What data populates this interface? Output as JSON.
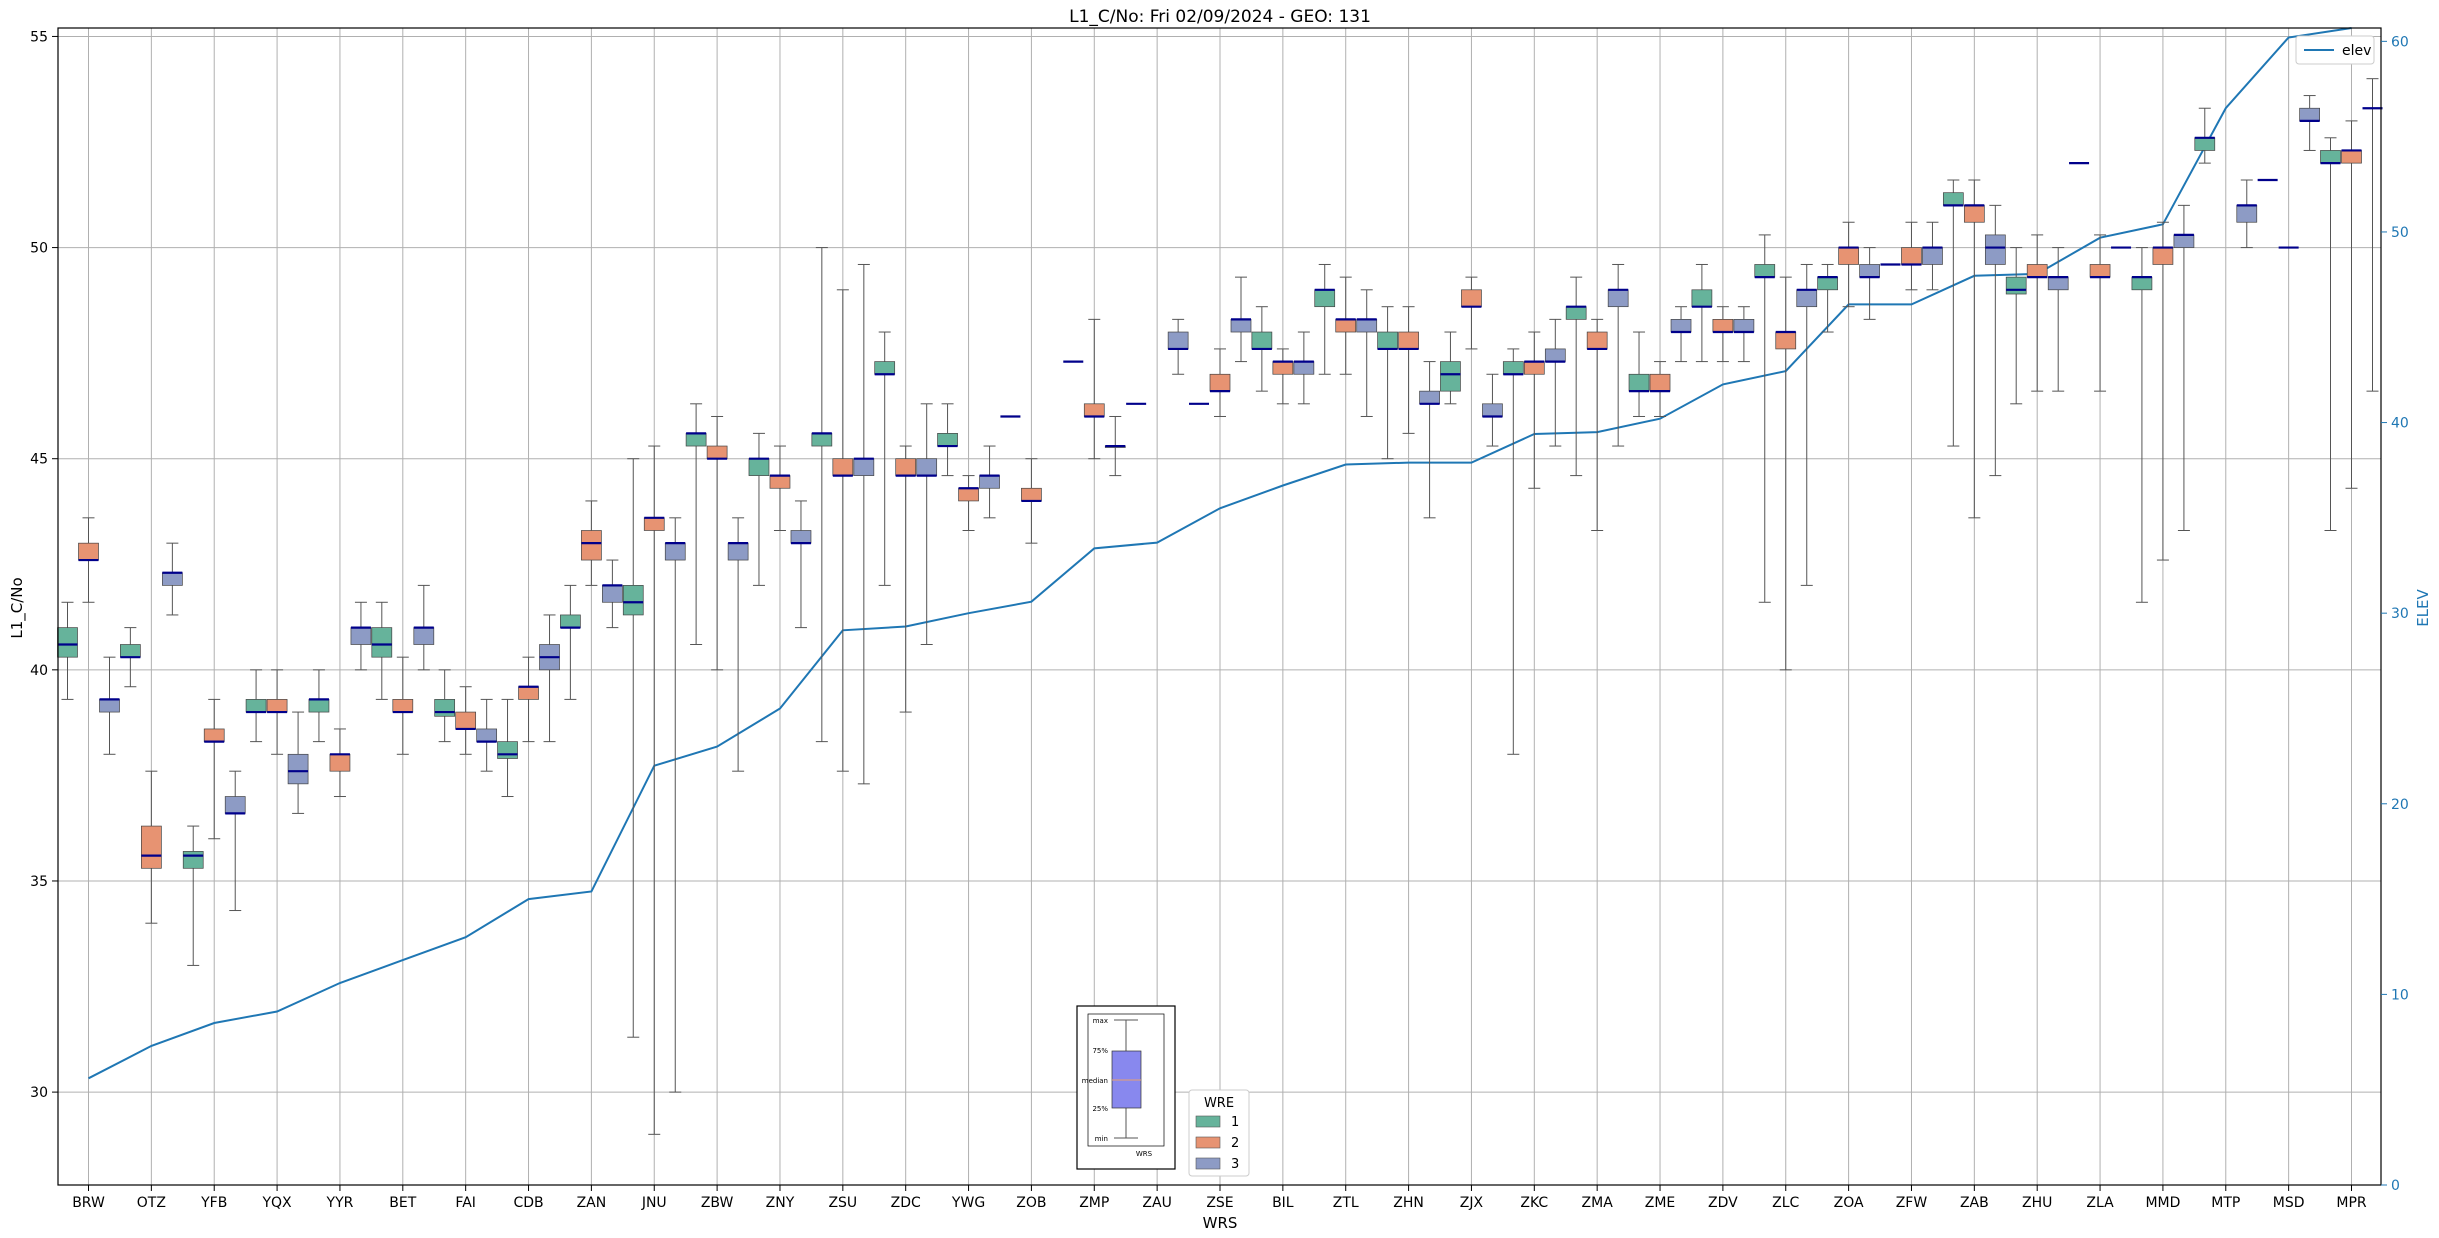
{
  "chart_data": {
    "type": "box",
    "title": "L1_C/No: Fri 02/09/2024 - GEO: 131",
    "xlabel": "WRS",
    "ylabel": "L1_C/No",
    "y2label": "ELEV",
    "ylim": [
      27.8,
      55.2
    ],
    "y2lim": [
      0,
      60.7
    ],
    "yticks": [
      30,
      35,
      40,
      45,
      50,
      55
    ],
    "y2ticks": [
      0,
      10,
      20,
      30,
      40,
      50,
      60
    ],
    "grid": true,
    "colors": {
      "1": "#66b39b",
      "2": "#e79372",
      "3": "#8d9bc5",
      "median": "#00008b",
      "elev": "#1f77b4",
      "whisker": "#555555"
    },
    "categories": [
      "BRW",
      "OTZ",
      "YFB",
      "YQX",
      "YYR",
      "BET",
      "FAI",
      "CDB",
      "ZAN",
      "JNU",
      "ZBW",
      "ZNY",
      "ZSU",
      "ZDC",
      "YWG",
      "ZOB",
      "ZMP",
      "ZAU",
      "ZSE",
      "BIL",
      "ZTL",
      "ZHN",
      "ZJX",
      "ZKC",
      "ZMA",
      "ZME",
      "ZDV",
      "ZLC",
      "ZOA",
      "ZFW",
      "ZAB",
      "ZHU",
      "ZLA",
      "MMD",
      "MTP",
      "MSD",
      "MPR"
    ],
    "legend": {
      "title": "WRE",
      "entries": [
        "1",
        "2",
        "3"
      ],
      "location": "bottom-center"
    },
    "elev_legend": {
      "label": "elev",
      "location": "top-right"
    },
    "series": [
      {
        "name": "1",
        "boxes": [
          [
            0,
            39.3,
            40.3,
            40.6,
            41.0,
            41.6
          ],
          [
            1,
            39.6,
            40.3,
            40.3,
            40.6,
            41.0
          ],
          [
            2,
            33.0,
            35.3,
            35.6,
            35.7,
            36.3
          ],
          [
            3,
            38.3,
            39.0,
            39.0,
            39.3,
            40.0
          ],
          [
            4,
            38.3,
            39.0,
            39.3,
            39.3,
            40.0
          ],
          [
            5,
            39.3,
            40.3,
            40.6,
            41.0,
            41.6
          ],
          [
            6,
            38.3,
            38.9,
            39.0,
            39.3,
            40.0
          ],
          [
            7,
            37.0,
            37.9,
            38.0,
            38.3,
            39.3
          ],
          [
            8,
            39.3,
            41.0,
            41.0,
            41.3,
            42.0
          ],
          [
            9,
            31.3,
            41.3,
            41.6,
            42.0,
            45.0
          ],
          [
            10,
            40.6,
            45.3,
            45.6,
            45.6,
            46.3
          ],
          [
            11,
            42.0,
            44.6,
            45.0,
            45.0,
            45.6
          ],
          [
            12,
            38.3,
            45.3,
            45.6,
            45.6,
            50.0
          ],
          [
            13,
            42.0,
            47.0,
            47.0,
            47.3,
            48.0
          ],
          [
            14,
            44.6,
            45.3,
            45.3,
            45.6,
            46.3
          ],
          [
            15,
            null,
            null,
            46.0,
            null,
            null
          ],
          [
            16,
            null,
            null,
            47.3,
            null,
            null
          ],
          [
            17,
            null,
            null,
            46.3,
            null,
            null
          ],
          [
            18,
            null,
            null,
            46.3,
            null,
            null
          ],
          [
            19,
            46.6,
            47.6,
            47.6,
            48.0,
            48.6
          ],
          [
            20,
            47.0,
            48.6,
            49.0,
            49.0,
            49.6
          ],
          [
            21,
            45.0,
            47.6,
            47.6,
            48.0,
            48.6
          ],
          [
            22,
            46.3,
            46.6,
            47.0,
            47.3,
            48.0
          ],
          [
            23,
            38.0,
            47.0,
            47.0,
            47.3,
            47.6
          ],
          [
            24,
            44.6,
            48.3,
            48.6,
            48.6,
            49.3
          ],
          [
            25,
            46.0,
            46.6,
            46.6,
            47.0,
            48.0
          ],
          [
            26,
            47.3,
            48.6,
            48.6,
            49.0,
            49.6
          ],
          [
            27,
            41.6,
            49.3,
            49.3,
            49.6,
            50.3
          ],
          [
            28,
            48.0,
            49.0,
            49.3,
            49.3,
            49.6
          ],
          [
            29,
            null,
            null,
            49.6,
            null,
            null
          ],
          [
            30,
            45.3,
            51.0,
            51.0,
            51.3,
            51.6
          ],
          [
            31,
            46.3,
            48.9,
            49.0,
            49.3,
            50.0
          ],
          [
            32,
            null,
            null,
            52.0,
            null,
            null
          ],
          [
            33,
            41.6,
            49.0,
            49.3,
            49.3,
            50.0
          ],
          [
            34,
            52.0,
            52.3,
            52.6,
            52.6,
            53.3
          ],
          [
            35,
            null,
            null,
            51.6,
            null,
            null
          ],
          [
            36,
            43.3,
            52.0,
            52.0,
            52.3,
            52.6
          ]
        ]
      },
      {
        "name": "2",
        "boxes": [
          [
            0,
            41.6,
            42.6,
            42.6,
            43.0,
            43.6
          ],
          [
            1,
            34.0,
            35.3,
            35.6,
            36.3,
            37.6
          ],
          [
            2,
            36.0,
            38.3,
            38.3,
            38.6,
            39.3
          ],
          [
            3,
            38.0,
            39.0,
            39.0,
            39.3,
            40.0
          ],
          [
            4,
            37.0,
            37.6,
            38.0,
            38.0,
            38.6
          ],
          [
            5,
            38.0,
            39.0,
            39.0,
            39.3,
            40.3
          ],
          [
            6,
            38.0,
            38.6,
            38.6,
            39.0,
            39.6
          ],
          [
            7,
            38.3,
            39.3,
            39.6,
            39.6,
            40.3
          ],
          [
            8,
            42.0,
            42.6,
            43.0,
            43.3,
            44.0
          ],
          [
            9,
            29.0,
            43.3,
            43.6,
            43.6,
            45.3
          ],
          [
            10,
            40.0,
            45.0,
            45.0,
            45.3,
            46.0
          ],
          [
            11,
            43.3,
            44.3,
            44.6,
            44.6,
            45.3
          ],
          [
            12,
            37.6,
            44.6,
            44.6,
            45.0,
            49.0
          ],
          [
            13,
            39.0,
            44.6,
            44.6,
            45.0,
            45.3
          ],
          [
            14,
            43.3,
            44.0,
            44.3,
            44.3,
            44.6
          ],
          [
            15,
            43.0,
            44.0,
            44.0,
            44.3,
            45.0
          ],
          [
            16,
            45.0,
            46.0,
            46.0,
            46.3,
            48.3
          ],
          [
            17,
            null,
            null,
            null,
            null,
            null
          ],
          [
            18,
            46.0,
            46.6,
            46.6,
            47.0,
            47.6
          ],
          [
            19,
            46.3,
            47.0,
            47.3,
            47.3,
            47.6
          ],
          [
            20,
            47.0,
            48.0,
            48.3,
            48.3,
            49.3
          ],
          [
            21,
            45.6,
            47.6,
            47.6,
            48.0,
            48.6
          ],
          [
            22,
            47.6,
            48.6,
            48.6,
            49.0,
            49.3
          ],
          [
            23,
            44.3,
            47.0,
            47.3,
            47.3,
            48.0
          ],
          [
            24,
            43.3,
            47.6,
            47.6,
            48.0,
            48.3
          ],
          [
            25,
            46.0,
            46.6,
            46.6,
            47.0,
            47.3
          ],
          [
            26,
            47.3,
            48.0,
            48.0,
            48.3,
            48.6
          ],
          [
            27,
            40.0,
            47.6,
            48.0,
            48.0,
            49.3
          ],
          [
            28,
            48.6,
            49.6,
            50.0,
            50.0,
            50.6
          ],
          [
            29,
            49.0,
            49.6,
            49.6,
            50.0,
            50.6
          ],
          [
            30,
            43.6,
            50.6,
            51.0,
            51.0,
            51.6
          ],
          [
            31,
            46.6,
            49.3,
            49.3,
            49.6,
            50.3
          ],
          [
            32,
            46.6,
            49.3,
            49.3,
            49.6,
            50.3
          ],
          [
            33,
            42.6,
            49.6,
            50.0,
            50.0,
            50.6
          ],
          [
            34,
            null,
            null,
            null,
            null,
            null
          ],
          [
            35,
            null,
            null,
            50.0,
            null,
            null
          ],
          [
            36,
            44.3,
            52.0,
            52.3,
            52.3,
            53.0
          ]
        ]
      },
      {
        "name": "3",
        "boxes": [
          [
            0,
            38.0,
            39.0,
            39.3,
            39.3,
            40.3
          ],
          [
            1,
            41.3,
            42.0,
            42.3,
            42.3,
            43.0
          ],
          [
            2,
            34.3,
            36.6,
            36.6,
            37.0,
            37.6
          ],
          [
            3,
            36.6,
            37.3,
            37.6,
            38.0,
            39.0
          ],
          [
            4,
            40.0,
            40.6,
            41.0,
            41.0,
            41.6
          ],
          [
            5,
            40.0,
            40.6,
            41.0,
            41.0,
            42.0
          ],
          [
            6,
            37.6,
            38.3,
            38.3,
            38.6,
            39.3
          ],
          [
            7,
            38.3,
            40.0,
            40.3,
            40.6,
            41.3
          ],
          [
            8,
            41.0,
            41.6,
            42.0,
            42.0,
            42.6
          ],
          [
            9,
            30.0,
            42.6,
            43.0,
            43.0,
            43.6
          ],
          [
            10,
            37.6,
            42.6,
            43.0,
            43.0,
            43.6
          ],
          [
            11,
            41.0,
            43.0,
            43.0,
            43.3,
            44.0
          ],
          [
            12,
            37.3,
            44.6,
            45.0,
            45.0,
            49.6
          ],
          [
            13,
            40.6,
            44.6,
            44.6,
            45.0,
            46.3
          ],
          [
            14,
            43.6,
            44.3,
            44.6,
            44.6,
            45.3
          ],
          [
            15,
            null,
            null,
            null,
            null,
            null
          ],
          [
            16,
            44.6,
            45.3,
            45.3,
            45.3,
            46.0
          ],
          [
            17,
            47.0,
            47.6,
            47.6,
            48.0,
            48.3
          ],
          [
            18,
            47.3,
            48.0,
            48.3,
            48.3,
            49.3
          ],
          [
            19,
            46.3,
            47.0,
            47.3,
            47.3,
            48.0
          ],
          [
            20,
            46.0,
            48.0,
            48.3,
            48.3,
            49.0
          ],
          [
            21,
            43.6,
            46.3,
            46.3,
            46.6,
            47.3
          ],
          [
            22,
            45.3,
            46.0,
            46.0,
            46.3,
            47.0
          ],
          [
            23,
            45.3,
            47.3,
            47.3,
            47.6,
            48.3
          ],
          [
            24,
            45.3,
            48.6,
            49.0,
            49.0,
            49.6
          ],
          [
            25,
            47.3,
            48.0,
            48.0,
            48.3,
            48.6
          ],
          [
            26,
            47.3,
            48.0,
            48.0,
            48.3,
            48.6
          ],
          [
            27,
            42.0,
            48.6,
            49.0,
            49.0,
            49.6
          ],
          [
            28,
            48.3,
            49.3,
            49.3,
            49.6,
            50.0
          ],
          [
            29,
            49.0,
            49.6,
            50.0,
            50.0,
            50.6
          ],
          [
            30,
            44.6,
            49.6,
            50.0,
            50.3,
            51.0
          ],
          [
            31,
            46.6,
            49.0,
            49.3,
            49.3,
            50.0
          ],
          [
            32,
            null,
            null,
            50.0,
            null,
            null
          ],
          [
            33,
            43.3,
            50.0,
            50.3,
            50.3,
            51.0
          ],
          [
            34,
            50.0,
            50.6,
            51.0,
            51.0,
            51.6
          ],
          [
            35,
            52.3,
            53.0,
            53.0,
            53.3,
            53.6
          ],
          [
            36,
            46.6,
            null,
            53.3,
            null,
            54.0
          ]
        ]
      }
    ],
    "elevation": [
      5.6,
      7.3,
      8.5,
      9.1,
      10.6,
      11.8,
      13.0,
      15.0,
      15.4,
      22.0,
      23.0,
      25.0,
      29.1,
      29.3,
      30.0,
      30.6,
      33.4,
      33.7,
      35.5,
      36.7,
      37.8,
      37.9,
      37.9,
      39.4,
      39.5,
      40.2,
      42.0,
      42.7,
      46.2,
      46.2,
      47.7,
      47.8,
      49.7,
      50.4,
      56.5,
      60.2,
      60.7
    ],
    "inset": {
      "title": "",
      "labels": [
        "max",
        "75%",
        "median",
        "25%",
        "min"
      ],
      "xlabel": "WRS"
    }
  }
}
